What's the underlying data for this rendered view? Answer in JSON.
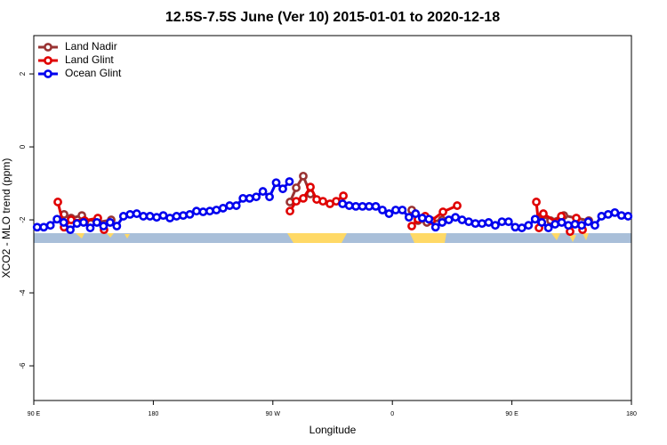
{
  "chart_data": {
    "type": "line",
    "title": "12.5S-7.5S June (Ver 10)   2015-01-01 to 2020-12-18",
    "x_label": "Longitude",
    "y_label": "XCO2 - MLO trend (ppm)",
    "xlim": [
      90,
      540
    ],
    "xticks": [
      {
        "value": 90,
        "label": "90 E"
      },
      180,
      {
        "value": 270,
        "label": "90 W"
      },
      {
        "value": 360,
        "label": "0"
      },
      {
        "value": 450,
        "label": "90 E"
      },
      {
        "value": 540,
        "label": "180"
      }
    ],
    "ylim": [
      -6.95,
      3.05
    ],
    "yticks": [
      2,
      0,
      -2,
      -4,
      -6
    ],
    "legend": "top-left",
    "series": [
      {
        "name": "Land Nadir",
        "color": "#993333",
        "x": [
          112.8,
          118.1,
          126.2,
          132.9,
          148.3,
          null,
          282.9,
          287.6,
          292.9,
          298.3,
          null,
          374.6,
          379.3,
          386.0,
          397.4,
          null,
          473.0,
          479.1,
          489.1,
          507.9
        ],
        "values": [
          -1.85,
          -1.95,
          -1.88,
          -2.1,
          -2.0,
          null,
          -1.51,
          -1.12,
          -0.8,
          -1.29,
          null,
          -1.73,
          -2.02,
          -2.07,
          -2.0,
          null,
          -1.88,
          -2.02,
          -1.88,
          -2.02
        ]
      },
      {
        "name": "Land Glint",
        "color": "#e00000",
        "x": [
          108.1,
          112.8,
          118.1,
          128.2,
          138.2,
          142.9,
          null,
          282.9,
          287.6,
          292.9,
          298.3,
          303.0,
          307.7,
          313.0,
          317.7,
          323.1,
          null,
          374.6,
          379.3,
          384.7,
          389.4,
          398.1,
          408.8,
          null,
          468.4,
          470.4,
          473.7,
          483.8,
          487.2,
          493.8,
          498.5,
          503.2
        ],
        "values": [
          -1.51,
          -2.2,
          -2.0,
          -2.02,
          -1.95,
          -2.27,
          null,
          -1.76,
          -1.49,
          -1.41,
          -1.1,
          -1.44,
          -1.49,
          -1.56,
          -1.49,
          -1.34,
          null,
          -2.17,
          -1.98,
          -1.9,
          -2.02,
          -1.78,
          -1.61,
          null,
          -1.51,
          -2.22,
          -1.83,
          -2.07,
          -1.9,
          -2.32,
          -1.95,
          -2.27
        ]
      },
      {
        "name": "Ocean Glint",
        "color": "#0000ee",
        "x": [
          92.5,
          97.5,
          102.5,
          107.5,
          112.5,
          117.5,
          122.5,
          127.5,
          132.5,
          137.5,
          142.5,
          147.5,
          152.5,
          157.5,
          162.5,
          167.5,
          172.5,
          177.5,
          182.5,
          187.5,
          192.5,
          197.5,
          202.5,
          207.5,
          212.5,
          217.5,
          222.5,
          227.5,
          232.5,
          237.5,
          242.5,
          247.5,
          252.5,
          257.5,
          262.5,
          267.5,
          272.5,
          277.5,
          282.5,
          287.5,
          292.5,
          297.5,
          302.5,
          307.5,
          312.5,
          317.5,
          322.5,
          327.5,
          332.5,
          337.5,
          342.5,
          347.5,
          352.5,
          357.5,
          362.5,
          367.5,
          372.5,
          377.5,
          382.5,
          387.5,
          392.5,
          397.5,
          402.5,
          407.5,
          412.5,
          417.5,
          422.5,
          427.5,
          432.5,
          437.5,
          442.5,
          447.5,
          452.5,
          457.5,
          462.5,
          467.5,
          472.5,
          477.5,
          482.5,
          487.5,
          492.5,
          497.5,
          502.5,
          507.5,
          512.5,
          517.5,
          522.5,
          527.5,
          532.5,
          537.5
        ],
        "values": [
          -2.2,
          -2.2,
          -2.15,
          -1.98,
          -2.07,
          -2.27,
          -2.1,
          -2.07,
          -2.22,
          -2.07,
          -2.17,
          -2.07,
          -2.17,
          -1.9,
          -1.85,
          -1.83,
          -1.9,
          -1.9,
          -1.93,
          -1.88,
          -1.95,
          -1.9,
          -1.88,
          -1.85,
          -1.76,
          -1.78,
          -1.76,
          -1.73,
          -1.68,
          -1.61,
          -1.61,
          -1.41,
          -1.41,
          -1.37,
          -1.22,
          -1.37,
          -0.98,
          -1.15,
          -0.95,
          null,
          null,
          null,
          null,
          null,
          null,
          null,
          -1.56,
          -1.61,
          -1.63,
          -1.63,
          -1.63,
          -1.63,
          -1.73,
          -1.83,
          -1.73,
          -1.73,
          -1.93,
          -1.83,
          -1.95,
          -1.98,
          -2.2,
          -2.07,
          -2.0,
          -1.93,
          -2.0,
          -2.05,
          -2.1,
          -2.1,
          -2.07,
          -2.15,
          -2.05,
          -2.05,
          -2.2,
          -2.22,
          -2.15,
          -1.98,
          -2.07,
          -2.22,
          -2.12,
          -2.07,
          -2.15,
          -2.12,
          -2.15,
          -2.05,
          -2.15,
          -1.9,
          -1.85,
          -1.8,
          -1.88,
          -1.9
        ]
      }
    ]
  }
}
